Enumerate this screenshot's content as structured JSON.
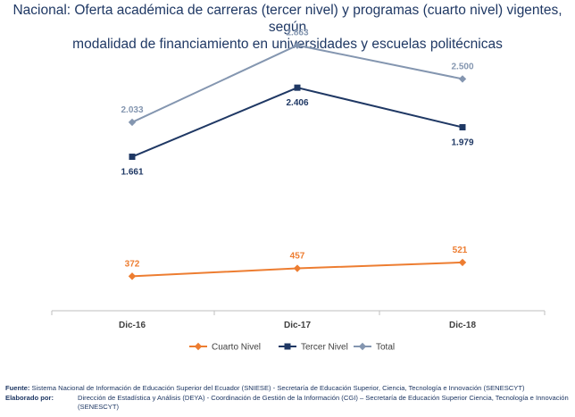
{
  "chart_data": {
    "type": "line",
    "title_line1": "Nacional: Oferta académica de carreras (tercer nivel) y programas (cuarto nivel) vigentes, según",
    "title_line2": "modalidad de financiamiento en universidades y escuelas politécnicas",
    "categories": [
      "Dic-16",
      "Dic-17",
      "Dic-18"
    ],
    "y_range": [
      0,
      3000
    ],
    "series": [
      {
        "name": "Cuarto Nivel",
        "color": "#ed7d31",
        "marker": "diamond",
        "values": [
          372,
          457,
          521
        ],
        "labels": [
          "372",
          "457",
          "521"
        ]
      },
      {
        "name": "Tercer Nivel",
        "color": "#1f3864",
        "marker": "square",
        "values": [
          1661,
          2406,
          1979
        ],
        "labels": [
          "1.661",
          "2.406",
          "1.979"
        ]
      },
      {
        "name": "Total",
        "color": "#8496b0",
        "marker": "diamond",
        "values": [
          2033,
          2863,
          2500
        ],
        "labels": [
          "2.033",
          "2.863",
          "2.500"
        ]
      }
    ],
    "legend_position": "bottom"
  },
  "footer": {
    "source_label": "Fuente:",
    "source_text": "Sistema Nacional de Información de Educación Superior del Ecuador (SNIESE) - Secretaría de Educación Superior, Ciencia, Tecnología e Innovación (SENESCYT)",
    "elaborated_label": "Elaborado por:",
    "elaborated_text": "Dirección de Estadística y Análisis (DEYA) - Coordinación de Gestión de la Información (CGI) – Secretaría de Educación Superior Ciencia, Tecnología e Innovación (SENESCYT)"
  }
}
